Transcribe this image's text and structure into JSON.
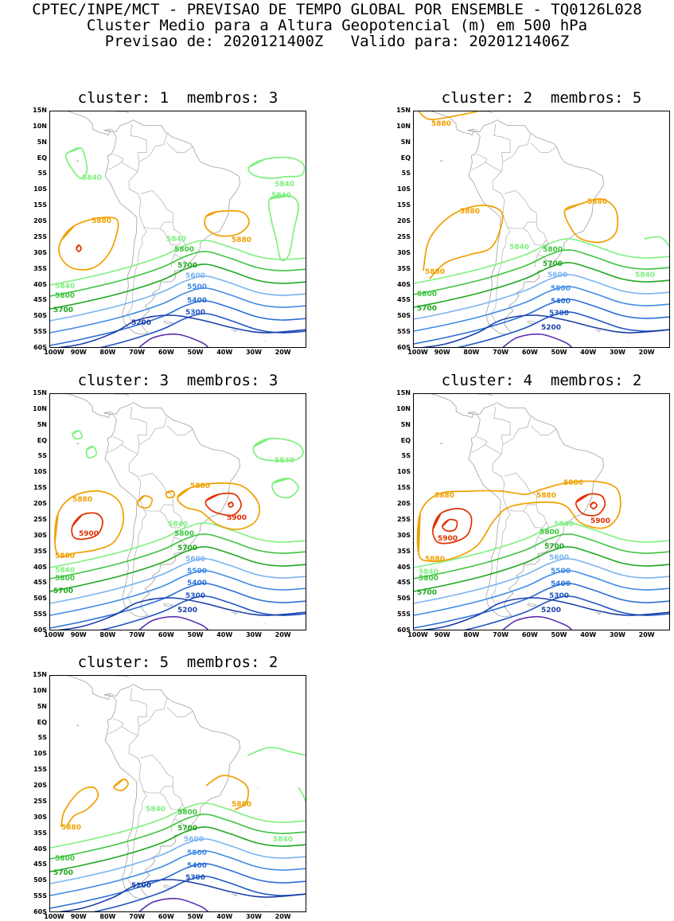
{
  "header": {
    "line1": "CPTEC/INPE/MCT - PREVISAO DE TEMPO GLOBAL POR ENSEMBLE - TQ0126L028",
    "line2": "Cluster Medio para a Altura Geopotencial (m) em 500 hPa",
    "line3": "Previsao de: 2020121400Z   Valido para: 2020121406Z"
  },
  "axes": {
    "lat_labels": [
      "15N",
      "10N",
      "5N",
      "EQ",
      "5S",
      "10S",
      "15S",
      "20S",
      "25S",
      "30S",
      "35S",
      "40S",
      "45S",
      "50S",
      "55S",
      "60S"
    ],
    "lon_labels": [
      "100W",
      "90W",
      "80W",
      "70W",
      "60W",
      "50W",
      "40W",
      "30W",
      "20W"
    ]
  },
  "colors": {
    "c5200": "#1b3faa",
    "c5300": "#2156c0",
    "c5400": "#2b6fd6",
    "c5500": "#3f8ce6",
    "c5600": "#7ab4f0",
    "c5700": "#1ea81e",
    "c5800": "#3dc43d",
    "c5840": "#7ef07e",
    "c5880": "#f0a000",
    "c5900": "#e03000",
    "c5100": "#5a2db0",
    "coast": "#a0a0a0"
  },
  "panels": [
    {
      "id": 1,
      "title": "cluster: 1  membros: 3",
      "labels": [
        {
          "t": "5840",
          "c": "c5840",
          "x": 40,
          "y": 86
        },
        {
          "t": "5840",
          "c": "c5840",
          "x": 282,
          "y": 94
        },
        {
          "t": "5840",
          "c": "c5840",
          "x": 278,
          "y": 108
        },
        {
          "t": "5880",
          "c": "c5880",
          "x": 52,
          "y": 140
        },
        {
          "t": "5880",
          "c": "c5880",
          "x": 228,
          "y": 164
        },
        {
          "t": "5840",
          "c": "c5840",
          "x": 146,
          "y": 163
        },
        {
          "t": "5800",
          "c": "c5800",
          "x": 156,
          "y": 176
        },
        {
          "t": "5700",
          "c": "c5700",
          "x": 160,
          "y": 196
        },
        {
          "t": "5600",
          "c": "c5600",
          "x": 170,
          "y": 209
        },
        {
          "t": "5500",
          "c": "c5500",
          "x": 172,
          "y": 223
        },
        {
          "t": "5400",
          "c": "c5400",
          "x": 172,
          "y": 240
        },
        {
          "t": "5300",
          "c": "c5300",
          "x": 170,
          "y": 255
        },
        {
          "t": "5840",
          "c": "c5840",
          "x": 6,
          "y": 222
        },
        {
          "t": "5800",
          "c": "c5800",
          "x": 6,
          "y": 234
        },
        {
          "t": "5700",
          "c": "c5700",
          "x": 4,
          "y": 252
        },
        {
          "t": "5200",
          "c": "c5200",
          "x": 102,
          "y": 268
        }
      ]
    },
    {
      "id": 2,
      "title": "cluster: 2  membros: 5",
      "labels": [
        {
          "t": "5880",
          "c": "c5880",
          "x": 22,
          "y": 18
        },
        {
          "t": "5880",
          "c": "c5880",
          "x": 218,
          "y": 116
        },
        {
          "t": "5880",
          "c": "c5880",
          "x": 58,
          "y": 128
        },
        {
          "t": "5880",
          "c": "c5880",
          "x": 14,
          "y": 204
        },
        {
          "t": "5840",
          "c": "c5840",
          "x": 120,
          "y": 173
        },
        {
          "t": "5800",
          "c": "c5800",
          "x": 162,
          "y": 176
        },
        {
          "t": "5700",
          "c": "c5700",
          "x": 162,
          "y": 194
        },
        {
          "t": "5600",
          "c": "c5600",
          "x": 168,
          "y": 208
        },
        {
          "t": "5500",
          "c": "c5500",
          "x": 172,
          "y": 225
        },
        {
          "t": "5400",
          "c": "c5400",
          "x": 172,
          "y": 241
        },
        {
          "t": "5300",
          "c": "c5300",
          "x": 170,
          "y": 256
        },
        {
          "t": "5200",
          "c": "c5200",
          "x": 160,
          "y": 274
        },
        {
          "t": "5840",
          "c": "c5840",
          "x": 278,
          "y": 208
        },
        {
          "t": "5800",
          "c": "c5800",
          "x": 4,
          "y": 232
        },
        {
          "t": "5700",
          "c": "c5700",
          "x": 4,
          "y": 250
        }
      ]
    },
    {
      "id": 3,
      "title": "cluster: 3  membros: 3",
      "labels": [
        {
          "t": "5840",
          "c": "c5840",
          "x": 282,
          "y": 86
        },
        {
          "t": "5880",
          "c": "c5880",
          "x": 176,
          "y": 118
        },
        {
          "t": "5880",
          "c": "c5880",
          "x": 28,
          "y": 135
        },
        {
          "t": "5900",
          "c": "c5900",
          "x": 222,
          "y": 158
        },
        {
          "t": "5900",
          "c": "c5900",
          "x": 36,
          "y": 178
        },
        {
          "t": "5880",
          "c": "c5880",
          "x": 6,
          "y": 206
        },
        {
          "t": "5840",
          "c": "c5840",
          "x": 148,
          "y": 166
        },
        {
          "t": "5800",
          "c": "c5800",
          "x": 156,
          "y": 178
        },
        {
          "t": "5700",
          "c": "c5700",
          "x": 160,
          "y": 196
        },
        {
          "t": "5600",
          "c": "c5600",
          "x": 170,
          "y": 210
        },
        {
          "t": "5500",
          "c": "c5500",
          "x": 172,
          "y": 225
        },
        {
          "t": "5400",
          "c": "c5400",
          "x": 172,
          "y": 240
        },
        {
          "t": "5300",
          "c": "c5300",
          "x": 170,
          "y": 256
        },
        {
          "t": "5200",
          "c": "c5200",
          "x": 160,
          "y": 274
        },
        {
          "t": "5840",
          "c": "c5840",
          "x": 6,
          "y": 224
        },
        {
          "t": "5800",
          "c": "c5800",
          "x": 6,
          "y": 234
        },
        {
          "t": "5700",
          "c": "c5700",
          "x": 4,
          "y": 250
        }
      ]
    },
    {
      "id": 4,
      "title": "cluster: 4  membros: 2",
      "labels": [
        {
          "t": "5880",
          "c": "c5880",
          "x": 188,
          "y": 114
        },
        {
          "t": "5880",
          "c": "c5880",
          "x": 26,
          "y": 130
        },
        {
          "t": "5880",
          "c": "c5880",
          "x": 154,
          "y": 130
        },
        {
          "t": "5900",
          "c": "c5900",
          "x": 222,
          "y": 162
        },
        {
          "t": "5900",
          "c": "c5900",
          "x": 30,
          "y": 184
        },
        {
          "t": "5880",
          "c": "c5880",
          "x": 14,
          "y": 210
        },
        {
          "t": "5840",
          "c": "c5840",
          "x": 176,
          "y": 166
        },
        {
          "t": "5800",
          "c": "c5800",
          "x": 158,
          "y": 176
        },
        {
          "t": "5700",
          "c": "c5700",
          "x": 164,
          "y": 194
        },
        {
          "t": "5600",
          "c": "c5600",
          "x": 170,
          "y": 208
        },
        {
          "t": "5500",
          "c": "c5500",
          "x": 172,
          "y": 225
        },
        {
          "t": "5400",
          "c": "c5400",
          "x": 172,
          "y": 241
        },
        {
          "t": "5300",
          "c": "c5300",
          "x": 170,
          "y": 256
        },
        {
          "t": "5200",
          "c": "c5200",
          "x": 160,
          "y": 274
        },
        {
          "t": "5840",
          "c": "c5840",
          "x": 6,
          "y": 226
        },
        {
          "t": "5800",
          "c": "c5800",
          "x": 6,
          "y": 234
        },
        {
          "t": "5700",
          "c": "c5700",
          "x": 4,
          "y": 252
        }
      ]
    },
    {
      "id": 5,
      "title": "cluster: 5  membros: 2",
      "labels": [
        {
          "t": "5880",
          "c": "c5880",
          "x": 228,
          "y": 164
        },
        {
          "t": "5880",
          "c": "c5880",
          "x": 14,
          "y": 193
        },
        {
          "t": "5840",
          "c": "c5840",
          "x": 120,
          "y": 170
        },
        {
          "t": "5800",
          "c": "c5800",
          "x": 160,
          "y": 174
        },
        {
          "t": "5700",
          "c": "c5700",
          "x": 160,
          "y": 194
        },
        {
          "t": "5600",
          "c": "c5600",
          "x": 168,
          "y": 208
        },
        {
          "t": "5500",
          "c": "c5500",
          "x": 172,
          "y": 225
        },
        {
          "t": "5400",
          "c": "c5400",
          "x": 172,
          "y": 241
        },
        {
          "t": "5300",
          "c": "c5300",
          "x": 170,
          "y": 256
        },
        {
          "t": "5200",
          "c": "c5200",
          "x": 102,
          "y": 266
        },
        {
          "t": "5840",
          "c": "c5840",
          "x": 280,
          "y": 208
        },
        {
          "t": "5800",
          "c": "c5800",
          "x": 6,
          "y": 232
        },
        {
          "t": "5700",
          "c": "c5700",
          "x": 4,
          "y": 250
        }
      ]
    }
  ]
}
